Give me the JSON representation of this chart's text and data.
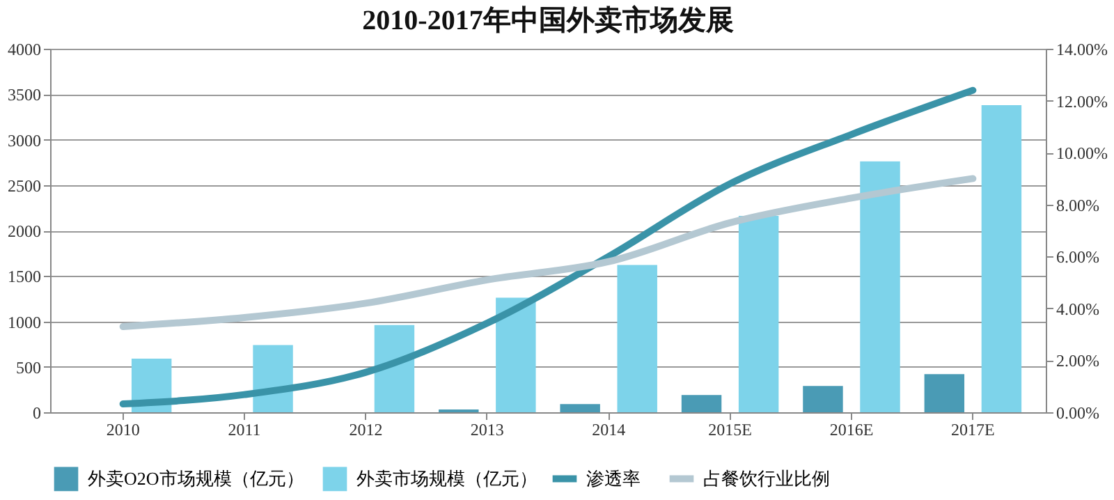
{
  "chart_data": {
    "type": "bar",
    "title": "2010-2017年中国外卖市场发展",
    "categories": [
      "2010",
      "2011",
      "2012",
      "2013",
      "2014",
      "2015E",
      "2016E",
      "2017E"
    ],
    "series": [
      {
        "name": "外卖O2O市场规模（亿元）",
        "color": "#4a9bb5",
        "values": [
          null,
          null,
          null,
          30,
          90,
          190,
          290,
          420
        ]
      },
      {
        "name": "外卖市场规模（亿元）",
        "color": "#7dd3ea",
        "values": [
          590,
          740,
          960,
          1260,
          1620,
          2160,
          2760,
          3380
        ]
      },
      {
        "name": "渗透率",
        "type": "line",
        "axis": "y2",
        "color": "#3a93a8",
        "values": [
          0.32,
          0.68,
          1.54,
          3.43,
          6.0,
          8.8,
          10.7,
          12.4
        ]
      },
      {
        "name": "占餐饮行业比例",
        "type": "line",
        "axis": "y2",
        "color": "#b4c8d2",
        "values": [
          3.3,
          3.65,
          4.2,
          5.1,
          5.8,
          7.3,
          8.25,
          9.0
        ]
      }
    ],
    "ylim": [
      0,
      4000
    ],
    "yticks": [
      0,
      500,
      1000,
      1500,
      2000,
      2500,
      3000,
      3500,
      4000
    ],
    "y2lim": [
      0,
      14
    ],
    "y2ticks": [
      {
        "value": 0,
        "label": "0.00%"
      },
      {
        "value": 2,
        "label": "2.00%"
      },
      {
        "value": 4,
        "label": "4.00%"
      },
      {
        "value": 6,
        "label": "6.00%"
      },
      {
        "value": 8,
        "label": "8.00%"
      },
      {
        "value": 10,
        "label": "10.00%"
      },
      {
        "value": 12,
        "label": "12.00%"
      },
      {
        "value": 14,
        "label": "14.00%"
      }
    ],
    "grid": "y",
    "legend": "bottom"
  }
}
